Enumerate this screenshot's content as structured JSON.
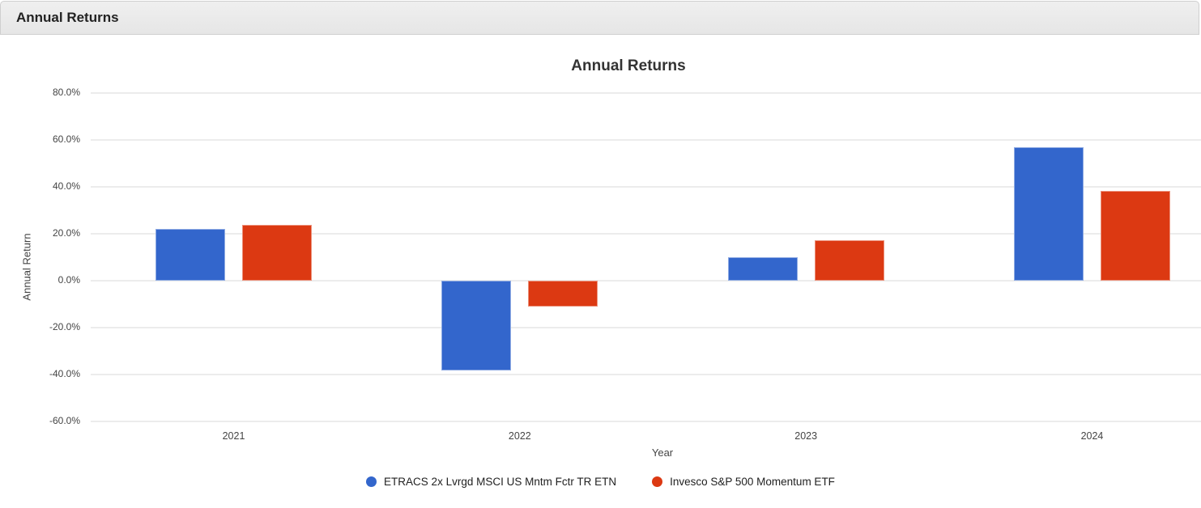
{
  "panel": {
    "header_title": "Annual Returns"
  },
  "chart_data": {
    "type": "bar",
    "title": "Annual Returns",
    "xlabel": "Year",
    "ylabel": "Annual Return",
    "categories": [
      "2021",
      "2022",
      "2023",
      "2024"
    ],
    "series": [
      {
        "name": "ETRACS 2x Lvrgd MSCI US Mntm Fctr TR ETN",
        "color": "#3366cc",
        "values": [
          21.9,
          -38.2,
          10.0,
          56.9
        ]
      },
      {
        "name": "Invesco S&P 500 Momentum ETF",
        "color": "#dc3912",
        "values": [
          23.9,
          -11.0,
          17.3,
          38.4
        ]
      }
    ],
    "ylim": [
      -60,
      80
    ],
    "ytick_step": 20,
    "ytick_format": "percent_1dp",
    "grid": true,
    "legend_position": "bottom",
    "colors": {
      "grid": "#ececec",
      "tick_text": "#444444",
      "title_text": "#333333"
    }
  }
}
